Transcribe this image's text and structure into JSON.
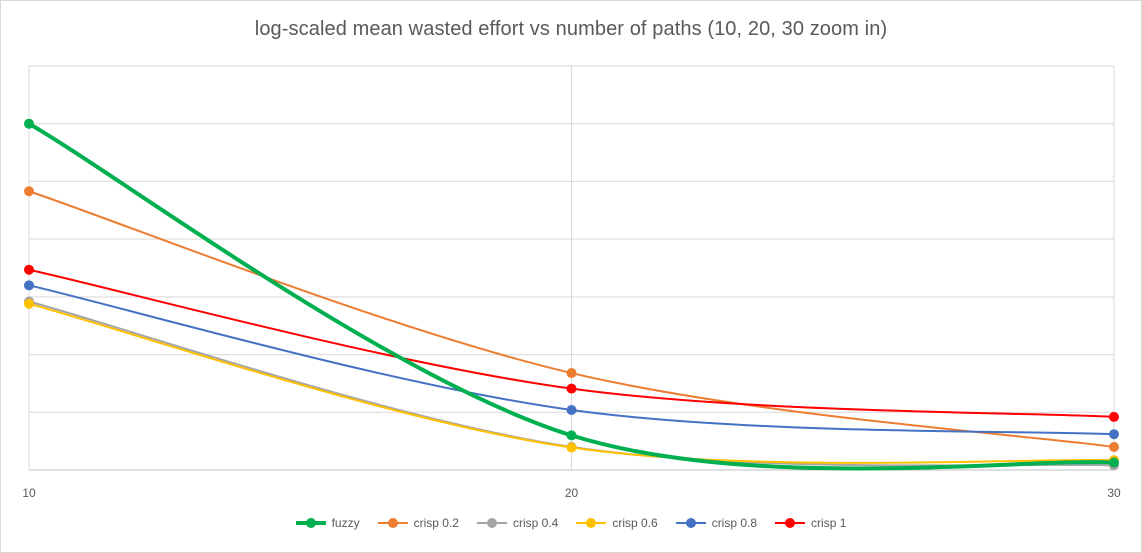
{
  "chart_data": {
    "type": "line",
    "title": "log-scaled mean wasted effort vs number of paths (10, 20, 30 zoom in)",
    "xlabel": "",
    "ylabel": "",
    "x": [
      10,
      20,
      30
    ],
    "xlim": [
      10,
      30
    ],
    "ylim": [
      0,
      7
    ],
    "y_ticks_shown": false,
    "grid": true,
    "legend_position": "bottom",
    "series": [
      {
        "name": "fuzzy",
        "color": "#00b050",
        "values": [
          6.0,
          0.6,
          0.13
        ],
        "emphasis": true
      },
      {
        "name": "crisp 0.2",
        "color": "#ed7d31",
        "values": [
          4.83,
          1.68,
          0.4
        ]
      },
      {
        "name": "crisp 0.4",
        "color": "#a5a5a5",
        "values": [
          2.92,
          0.4,
          0.08
        ]
      },
      {
        "name": "crisp 0.6",
        "color": "#ffc000",
        "values": [
          2.88,
          0.39,
          0.17
        ]
      },
      {
        "name": "crisp 0.8",
        "color": "#4472c4",
        "values": [
          3.2,
          1.04,
          0.62
        ]
      },
      {
        "name": "crisp 1",
        "color": "#ff0000",
        "values": [
          3.47,
          1.41,
          0.92
        ]
      }
    ]
  }
}
